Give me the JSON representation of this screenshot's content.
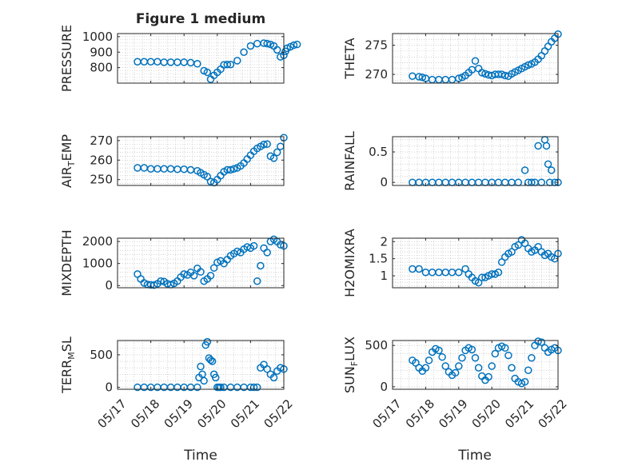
{
  "figure": {
    "title": "Figure 1 medium",
    "xlabel": "Time"
  },
  "colors": {
    "marker": "#0072BD",
    "axis": "#262626",
    "grid": "#b8b8b8"
  },
  "chart_data": [
    {
      "type": "scatter",
      "ylabel_main": "PRESSURE",
      "ylabel_sub": "",
      "ylabel_tail": "",
      "ylim": [
        700,
        1020
      ],
      "yticks": [
        800,
        900,
        1000
      ],
      "xlim": [
        "05/17",
        "05/22"
      ],
      "xticks": [
        "05/17",
        "05/18",
        "05/19",
        "05/20",
        "05/21",
        "05/22"
      ],
      "x": [
        0.6,
        0.8,
        1.0,
        1.2,
        1.4,
        1.6,
        1.8,
        2.0,
        2.2,
        2.4,
        2.6,
        2.7,
        2.8,
        2.9,
        3.0,
        3.1,
        3.2,
        3.3,
        3.4,
        3.6,
        3.8,
        4.0,
        4.2,
        4.4,
        4.5,
        4.6,
        4.7,
        4.8,
        4.9,
        5.0,
        5.05,
        5.1,
        5.2,
        5.3,
        5.4
      ],
      "y": [
        838,
        838,
        838,
        838,
        835,
        835,
        835,
        835,
        832,
        825,
        780,
        770,
        725,
        750,
        770,
        790,
        818,
        820,
        820,
        845,
        900,
        940,
        955,
        958,
        955,
        950,
        940,
        915,
        870,
        880,
        905,
        925,
        935,
        945,
        950
      ]
    },
    {
      "type": "scatter",
      "ylabel_main": "THETA",
      "ylabel_sub": "",
      "ylabel_tail": "",
      "ylim": [
        268.5,
        277
      ],
      "yticks": [
        270,
        275
      ],
      "xlim": [
        "05/17",
        "05/22"
      ],
      "xticks": [
        "05/17",
        "05/18",
        "05/19",
        "05/20",
        "05/21",
        "05/22"
      ],
      "x": [
        0.6,
        0.8,
        0.9,
        1.0,
        1.2,
        1.4,
        1.6,
        1.8,
        2.0,
        2.1,
        2.2,
        2.3,
        2.4,
        2.5,
        2.6,
        2.7,
        2.8,
        2.9,
        3.0,
        3.1,
        3.2,
        3.3,
        3.4,
        3.5,
        3.6,
        3.7,
        3.8,
        3.9,
        4.0,
        4.1,
        4.2,
        4.3,
        4.4,
        4.5,
        4.6,
        4.7,
        4.8,
        4.9,
        5.0
      ],
      "y": [
        269.7,
        269.6,
        269.5,
        269.3,
        269.1,
        269.1,
        269.1,
        269.1,
        269.3,
        269.5,
        269.8,
        270.3,
        270.8,
        272.3,
        271.0,
        270.3,
        270.1,
        269.9,
        269.8,
        270.0,
        270.0,
        270.0,
        269.8,
        269.7,
        270.1,
        270.4,
        270.7,
        271.0,
        271.3,
        271.6,
        271.8,
        272.1,
        272.6,
        273.2,
        274.0,
        274.8,
        275.6,
        276.2,
        276.9
      ]
    },
    {
      "type": "scatter",
      "ylabel_main": "AIR",
      "ylabel_sub": "T",
      "ylabel_tail": "EMP",
      "ylim": [
        247,
        272
      ],
      "yticks": [
        250,
        260,
        270
      ],
      "xlim": [
        "05/17",
        "05/22"
      ],
      "xticks": [
        "05/17",
        "05/18",
        "05/19",
        "05/20",
        "05/21",
        "05/22"
      ],
      "x": [
        0.6,
        0.8,
        1.0,
        1.2,
        1.4,
        1.6,
        1.8,
        2.0,
        2.2,
        2.4,
        2.5,
        2.6,
        2.7,
        2.8,
        2.9,
        3.0,
        3.1,
        3.2,
        3.3,
        3.4,
        3.5,
        3.6,
        3.7,
        3.8,
        3.9,
        4.0,
        4.1,
        4.2,
        4.3,
        4.4,
        4.5,
        4.6,
        4.7,
        4.8,
        4.9,
        5.0
      ],
      "y": [
        256,
        256,
        255.5,
        255.5,
        255.5,
        255.5,
        255.3,
        255.3,
        255,
        254.5,
        253.5,
        252.5,
        251.5,
        249,
        248.5,
        250,
        252,
        254,
        255,
        255,
        255.5,
        256,
        257,
        258.5,
        260.5,
        262.5,
        264.5,
        266,
        267,
        268,
        268.2,
        262,
        261,
        264,
        267,
        271.5
      ]
    },
    {
      "type": "scatter",
      "ylabel_main": "RAINFALL",
      "ylabel_sub": "",
      "ylabel_tail": "",
      "ylim": [
        -0.05,
        0.75
      ],
      "yticks": [
        0,
        0.5
      ],
      "xlim": [
        "05/17",
        "05/22"
      ],
      "xticks": [
        "05/17",
        "05/18",
        "05/19",
        "05/20",
        "05/21",
        "05/22"
      ],
      "x": [
        0.6,
        0.8,
        1.0,
        1.2,
        1.4,
        1.6,
        1.8,
        2.0,
        2.2,
        2.4,
        2.6,
        2.8,
        3.0,
        3.2,
        3.4,
        3.6,
        3.8,
        4.0,
        4.1,
        4.2,
        4.3,
        4.4,
        4.5,
        4.6,
        4.65,
        4.7,
        4.75,
        4.8,
        4.9,
        5.0
      ],
      "y": [
        0,
        0,
        0,
        0,
        0,
        0,
        0,
        0,
        0,
        0,
        0,
        0,
        0,
        0,
        0,
        0,
        0,
        0.2,
        0,
        0,
        0,
        0.6,
        0,
        0.7,
        0.6,
        0.3,
        0,
        0.2,
        0,
        0
      ]
    },
    {
      "type": "scatter",
      "ylabel_main": "MIXDEPTH",
      "ylabel_sub": "",
      "ylabel_tail": "",
      "ylim": [
        -100,
        2150
      ],
      "yticks": [
        0,
        1000,
        2000
      ],
      "xlim": [
        "05/17",
        "05/22"
      ],
      "xticks": [
        "05/17",
        "05/18",
        "05/19",
        "05/20",
        "05/21",
        "05/22"
      ],
      "x": [
        0.6,
        0.7,
        0.8,
        0.9,
        1.0,
        1.1,
        1.2,
        1.3,
        1.4,
        1.5,
        1.6,
        1.7,
        1.8,
        1.9,
        2.0,
        2.1,
        2.2,
        2.3,
        2.4,
        2.5,
        2.6,
        2.7,
        2.8,
        2.9,
        3.0,
        3.1,
        3.2,
        3.3,
        3.4,
        3.5,
        3.6,
        3.7,
        3.8,
        3.9,
        4.0,
        4.1,
        4.2,
        4.3,
        4.4,
        4.5,
        4.6,
        4.7,
        4.8,
        4.9,
        5.0
      ],
      "y": [
        520,
        300,
        120,
        50,
        30,
        20,
        80,
        200,
        180,
        80,
        40,
        100,
        200,
        380,
        520,
        480,
        600,
        450,
        780,
        620,
        200,
        300,
        450,
        800,
        1050,
        1120,
        1000,
        1180,
        1350,
        1450,
        1550,
        1500,
        1650,
        1750,
        1700,
        1800,
        200,
        900,
        1700,
        1500,
        2000,
        2100,
        2000,
        1850,
        1800
      ]
    },
    {
      "type": "scatter",
      "ylabel_main": "H2OMIXRA",
      "ylabel_sub": "",
      "ylabel_tail": "",
      "ylim": [
        0.65,
        2.1
      ],
      "yticks": [
        1,
        1.5,
        2
      ],
      "xlim": [
        "05/17",
        "05/22"
      ],
      "xticks": [
        "05/17",
        "05/18",
        "05/19",
        "05/20",
        "05/21",
        "05/22"
      ],
      "x": [
        0.6,
        0.8,
        1.0,
        1.2,
        1.4,
        1.6,
        1.8,
        2.0,
        2.2,
        2.3,
        2.4,
        2.5,
        2.6,
        2.7,
        2.8,
        2.9,
        3.0,
        3.1,
        3.2,
        3.3,
        3.4,
        3.5,
        3.6,
        3.7,
        3.8,
        3.9,
        4.0,
        4.1,
        4.2,
        4.3,
        4.4,
        4.5,
        4.6,
        4.7,
        4.8,
        4.9,
        5.0
      ],
      "y": [
        1.2,
        1.2,
        1.1,
        1.1,
        1.1,
        1.1,
        1.1,
        1.1,
        1.2,
        1.05,
        0.95,
        0.85,
        0.8,
        0.95,
        0.95,
        1.0,
        1.05,
        1.05,
        1.1,
        1.4,
        1.55,
        1.65,
        1.7,
        1.85,
        1.9,
        2.05,
        1.95,
        1.8,
        1.7,
        1.75,
        1.85,
        1.7,
        1.6,
        1.65,
        1.55,
        1.5,
        1.65
      ]
    },
    {
      "type": "scatter",
      "ylabel_main": "TERR",
      "ylabel_sub": "M",
      "ylabel_tail": "SL",
      "ylim": [
        -30,
        720
      ],
      "yticks": [
        0,
        500
      ],
      "xlim": [
        "05/17",
        "05/22"
      ],
      "xticks": [
        "05/17",
        "05/18",
        "05/19",
        "05/20",
        "05/21",
        "05/22"
      ],
      "x": [
        0.6,
        0.8,
        1.0,
        1.2,
        1.4,
        1.6,
        1.8,
        2.0,
        2.2,
        2.4,
        2.45,
        2.5,
        2.55,
        2.6,
        2.65,
        2.7,
        2.75,
        2.8,
        2.85,
        2.9,
        2.95,
        3.0,
        3.05,
        3.1,
        3.2,
        3.4,
        3.6,
        3.8,
        4.0,
        4.1,
        4.2,
        4.3,
        4.4,
        4.5,
        4.6,
        4.7,
        4.8,
        4.9,
        5.0
      ],
      "y": [
        0,
        0,
        0,
        0,
        0,
        0,
        0,
        0,
        0,
        0,
        150,
        320,
        200,
        100,
        650,
        700,
        450,
        420,
        400,
        200,
        150,
        0,
        0,
        0,
        0,
        0,
        0,
        0,
        0,
        0,
        0,
        300,
        350,
        280,
        200,
        150,
        250,
        300,
        280
      ]
    },
    {
      "type": "scatter",
      "ylabel_main": "SUN",
      "ylabel_sub": "F",
      "ylabel_tail": "LUX",
      "ylim": [
        -30,
        560
      ],
      "yticks": [
        0,
        500
      ],
      "xlim": [
        "05/17",
        "05/22"
      ],
      "xticks": [
        "05/17",
        "05/18",
        "05/19",
        "05/20",
        "05/21",
        "05/22"
      ],
      "x": [
        0.6,
        0.7,
        0.8,
        0.9,
        1.0,
        1.1,
        1.2,
        1.3,
        1.4,
        1.5,
        1.6,
        1.7,
        1.8,
        1.9,
        2.0,
        2.1,
        2.2,
        2.3,
        2.4,
        2.5,
        2.6,
        2.7,
        2.8,
        2.9,
        3.0,
        3.1,
        3.2,
        3.3,
        3.4,
        3.5,
        3.6,
        3.7,
        3.8,
        3.9,
        4.0,
        4.1,
        4.2,
        4.3,
        4.4,
        4.5,
        4.6,
        4.7,
        4.8,
        4.9,
        5.0
      ],
      "y": [
        320,
        290,
        230,
        190,
        230,
        320,
        420,
        460,
        440,
        360,
        250,
        180,
        140,
        170,
        250,
        350,
        440,
        470,
        450,
        350,
        230,
        130,
        80,
        120,
        250,
        400,
        470,
        490,
        470,
        380,
        230,
        100,
        60,
        40,
        60,
        200,
        350,
        500,
        550,
        540,
        470,
        420,
        450,
        470,
        440
      ]
    }
  ]
}
